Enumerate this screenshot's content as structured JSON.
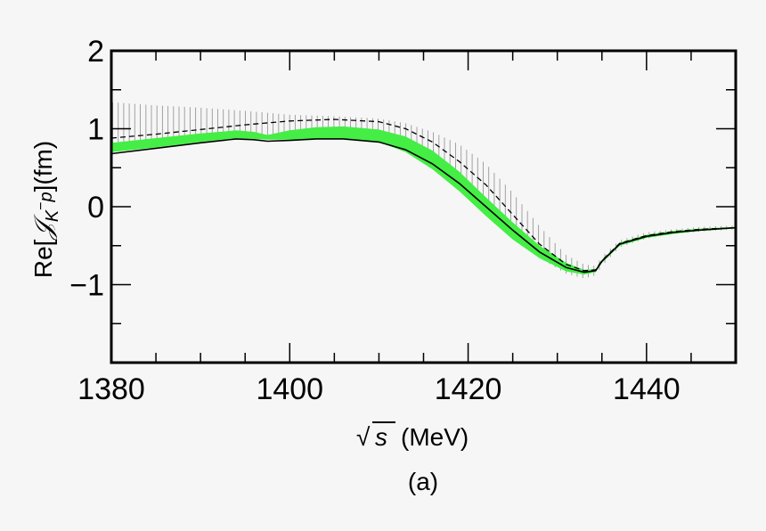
{
  "chart_data": {
    "type": "line",
    "panel_label": "(a)",
    "xlabel_sqrt": "√",
    "xlabel_var": "s",
    "xlabel_unit": "(MeV)",
    "ylabel": "Re[𝒥K⁻ p](fm)",
    "xlim": [
      1380,
      1450
    ],
    "ylim": [
      -2,
      2
    ],
    "x_ticks": [
      "1380",
      "1400",
      "1420",
      "1440"
    ],
    "x_tick_values": [
      1380,
      1400,
      1420,
      1440
    ],
    "y_ticks": [
      "2",
      "1",
      "0",
      "−1"
    ],
    "y_tick_values": [
      2,
      1,
      0,
      -1
    ],
    "colors": {
      "band": "#44ee44",
      "central": "#000000",
      "dashed": "#000000",
      "hatch": "#999999"
    },
    "series": [
      {
        "name": "central",
        "style": "solid",
        "x": [
          1380,
          1385,
          1390,
          1394,
          1396,
          1397.5,
          1400,
          1403,
          1406,
          1410,
          1413,
          1416,
          1419,
          1422,
          1425,
          1428,
          1431,
          1433,
          1434.3,
          1435,
          1437,
          1440,
          1443,
          1446,
          1450
        ],
        "y": [
          0.68,
          0.75,
          0.82,
          0.87,
          0.86,
          0.84,
          0.85,
          0.87,
          0.87,
          0.83,
          0.73,
          0.55,
          0.3,
          0.0,
          -0.3,
          -0.58,
          -0.78,
          -0.84,
          -0.82,
          -0.7,
          -0.48,
          -0.38,
          -0.33,
          -0.3,
          -0.27
        ]
      },
      {
        "name": "band",
        "style": "band",
        "x": [
          1380,
          1385,
          1390,
          1394,
          1396,
          1397.5,
          1400,
          1403,
          1406,
          1410,
          1413,
          1416,
          1419,
          1422,
          1425,
          1428,
          1431,
          1433,
          1434.3,
          1435,
          1437,
          1440,
          1443,
          1446,
          1450
        ],
        "y_low": [
          0.7,
          0.76,
          0.83,
          0.88,
          0.87,
          0.86,
          0.86,
          0.87,
          0.87,
          0.83,
          0.7,
          0.48,
          0.2,
          -0.12,
          -0.42,
          -0.66,
          -0.83,
          -0.87,
          -0.84,
          -0.72,
          -0.5,
          -0.4,
          -0.35,
          -0.31,
          -0.28
        ],
        "y_high": [
          0.82,
          0.88,
          0.94,
          0.98,
          0.96,
          0.92,
          0.98,
          1.02,
          1.03,
          0.99,
          0.9,
          0.72,
          0.45,
          0.12,
          -0.2,
          -0.5,
          -0.72,
          -0.81,
          -0.8,
          -0.68,
          -0.46,
          -0.36,
          -0.31,
          -0.28,
          -0.26
        ]
      },
      {
        "name": "dashed",
        "style": "dashed",
        "x": [
          1380,
          1385,
          1390,
          1395,
          1400,
          1405,
          1410,
          1413,
          1416,
          1419,
          1422,
          1425,
          1428,
          1431,
          1433,
          1434.3,
          1435,
          1437,
          1440,
          1443,
          1446,
          1450
        ],
        "y": [
          0.88,
          0.93,
          0.99,
          1.05,
          1.1,
          1.12,
          1.09,
          1.0,
          0.83,
          0.58,
          0.28,
          -0.1,
          -0.48,
          -0.74,
          -0.82,
          -0.81,
          -0.69,
          -0.47,
          -0.37,
          -0.32,
          -0.29,
          -0.27
        ]
      },
      {
        "name": "hatch",
        "style": "hatched-band",
        "x": [
          1380,
          1385,
          1390,
          1395,
          1400,
          1405,
          1410,
          1413,
          1416,
          1419,
          1422,
          1425,
          1428,
          1431,
          1433,
          1434.3,
          1435,
          1437,
          1440,
          1443,
          1446,
          1450
        ],
        "y_low": [
          0.8,
          0.83,
          0.86,
          0.88,
          0.9,
          0.93,
          0.92,
          0.82,
          0.6,
          0.3,
          -0.05,
          -0.38,
          -0.66,
          -0.86,
          -0.92,
          -0.88,
          -0.76,
          -0.52,
          -0.41,
          -0.35,
          -0.32,
          -0.29
        ],
        "y_high": [
          1.34,
          1.3,
          1.27,
          1.23,
          1.18,
          1.16,
          1.13,
          1.07,
          0.96,
          0.8,
          0.55,
          0.18,
          -0.25,
          -0.62,
          -0.74,
          -0.76,
          -0.64,
          -0.43,
          -0.33,
          -0.29,
          -0.26,
          -0.24
        ]
      }
    ]
  }
}
